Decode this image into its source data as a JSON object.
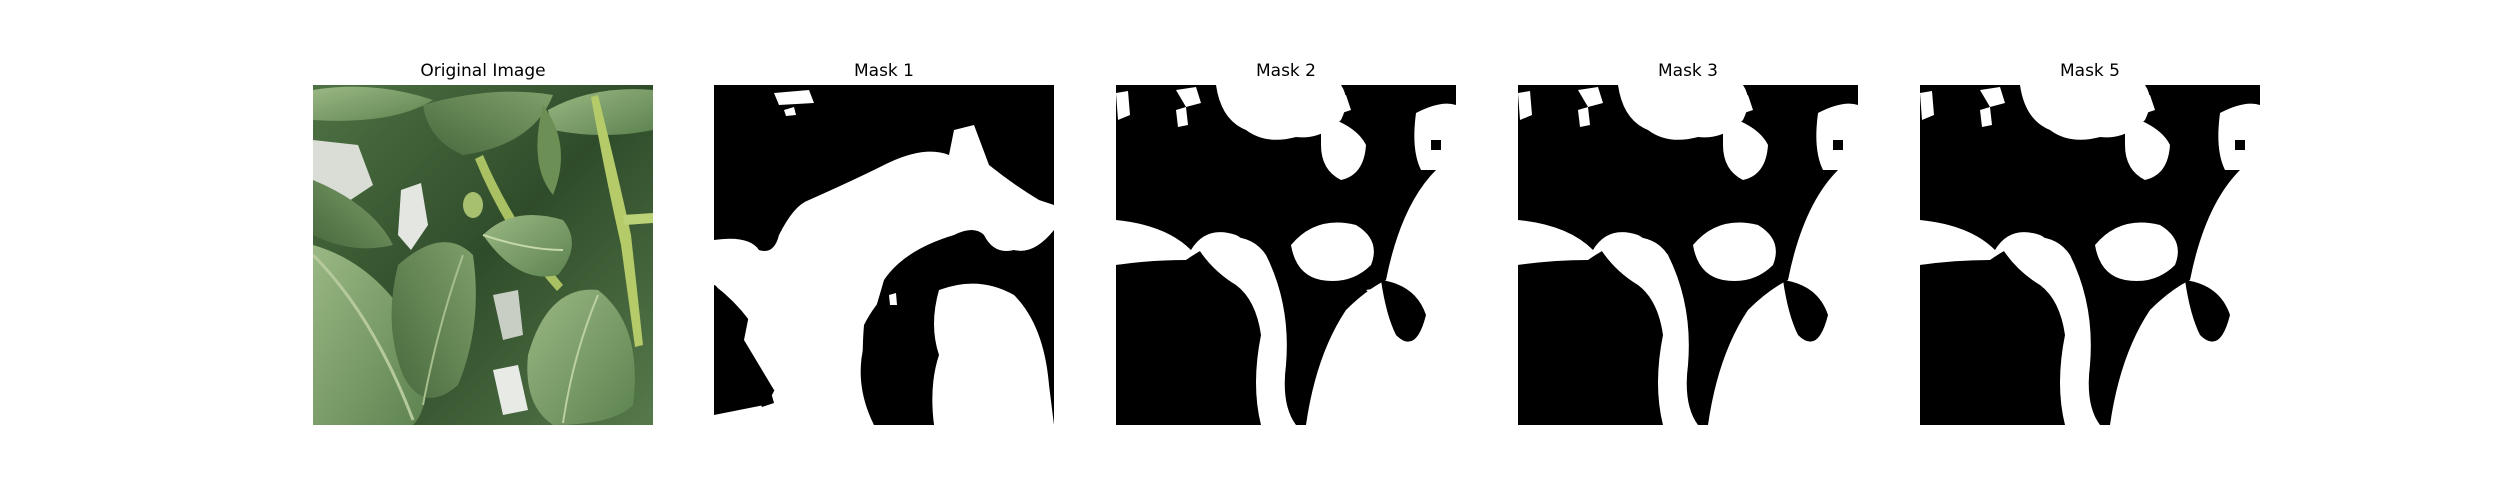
{
  "panels": [
    {
      "title": "Original Image"
    },
    {
      "title": "Mask 1"
    },
    {
      "title": "Mask 2"
    },
    {
      "title": "Mask 3"
    },
    {
      "title": "Mask 5"
    }
  ],
  "colors": {
    "mask_foreground": "#ffffff",
    "mask_background": "#000000",
    "leaf_light": "#8fae74",
    "leaf_dark": "#395b2f",
    "stem": "#b8cc6a"
  }
}
